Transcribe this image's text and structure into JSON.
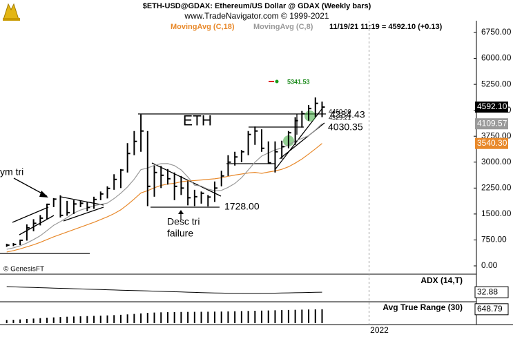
{
  "chart_data": [
    {
      "type": "ohlc",
      "title": "$ETH-USD@GDAX:  Ethereum/US Dollar @ GDAX  (Weekly bars)",
      "subtitle": "www.TradeNavigator.com © 1999-2021",
      "status": "11/19/21 11:19 = 4592.10 (+0.13)",
      "copyright": "© GenesisFT",
      "annotations": [
        "ETH",
        "1728.00",
        "4030.35",
        "4384.43",
        "4329.21",
        "4460.00",
        "5341.53",
        "Desc tri",
        "failure",
        "ym tri"
      ],
      "x": [
        1,
        2,
        3,
        4,
        5,
        6,
        7,
        8,
        9,
        10,
        11,
        12,
        13,
        14,
        15,
        16,
        17,
        18,
        19,
        20,
        21,
        22,
        23,
        24,
        25,
        26,
        27,
        28,
        29,
        30,
        31,
        32,
        33,
        34,
        35,
        36,
        37,
        38,
        39,
        40,
        41,
        42,
        43,
        44,
        45,
        46,
        47,
        48
      ],
      "xlim": [
        0,
        71
      ],
      "xticks": [
        {
          "value": 55,
          "label": "2022"
        }
      ],
      "ylim": [
        -200,
        7090
      ],
      "yticks": [
        {
          "value": 0,
          "label": "0.00"
        },
        {
          "value": 750,
          "label": "750.00"
        },
        {
          "value": 1500,
          "label": "1500.00"
        },
        {
          "value": 2250,
          "label": "2250.00"
        },
        {
          "value": 3000,
          "label": "3000.00"
        },
        {
          "value": 3750,
          "label": "3750.00"
        },
        {
          "value": 4500,
          "label": "4500.00"
        },
        {
          "value": 5250,
          "label": "5250.00"
        },
        {
          "value": 6000,
          "label": "6000.00"
        },
        {
          "value": 6750,
          "label": "6750.00"
        }
      ],
      "color": "#000000",
      "high": [
        640,
        660,
        760,
        1200,
        1350,
        1470,
        1800,
        1960,
        2040,
        1880,
        1900,
        1880,
        1850,
        2000,
        2150,
        2300,
        2650,
        2800,
        3550,
        3900,
        4380,
        3900,
        2900,
        2890,
        2800,
        2700,
        2600,
        2450,
        2200,
        2150,
        2050,
        2440,
        2750,
        3200,
        3300,
        3350,
        3900,
        4030,
        3950,
        3600,
        3600,
        3620,
        3900,
        4300,
        4480,
        4650,
        4870,
        4750
      ],
      "low": [
        550,
        570,
        600,
        730,
        1000,
        1170,
        1350,
        1700,
        1400,
        1450,
        1500,
        1700,
        1580,
        1650,
        1900,
        1950,
        2200,
        2250,
        2700,
        3200,
        3300,
        1728,
        2000,
        2250,
        2350,
        1900,
        2050,
        1750,
        1728,
        1800,
        1720,
        1850,
        2300,
        2600,
        2900,
        3000,
        3200,
        3500,
        3300,
        2950,
        2700,
        3100,
        3400,
        3500,
        4000,
        4200,
        4300,
        4300
      ],
      "close": [
        600,
        620,
        740,
        1100,
        1230,
        1380,
        1780,
        1930,
        1460,
        1540,
        1790,
        1810,
        1690,
        1920,
        2080,
        2240,
        2500,
        2770,
        3250,
        3600,
        3900,
        2300,
        2700,
        2620,
        2520,
        2300,
        2250,
        1970,
        2000,
        2100,
        1990,
        2250,
        2600,
        3000,
        3150,
        3300,
        3800,
        3900,
        3400,
        2980,
        3300,
        3450,
        3850,
        4200,
        4400,
        4550,
        4700,
        4592.1
      ],
      "last_label": "4592.10",
      "series": [
        {
          "name": "MovingAvg (C,18)",
          "color": "#e8892b",
          "last_label": "3540.30",
          "values": [
            400,
            440,
            490,
            550,
            610,
            680,
            760,
            840,
            910,
            980,
            1050,
            1120,
            1190,
            1260,
            1340,
            1420,
            1510,
            1621,
            1768,
            1934,
            2109,
            2176,
            2258,
            2327,
            2368,
            2388,
            2432,
            2456,
            2468,
            2484,
            2501,
            2519,
            2548,
            2590,
            2626,
            2656,
            2686,
            2703,
            2675,
            2713,
            2746,
            2792,
            2866,
            2972,
            3091,
            3234,
            3384,
            3540.3
          ]
        },
        {
          "name": "MovingAvg (C,8)",
          "color": "#9a9a9a",
          "values": [
            480,
            520,
            580,
            660,
            760,
            870,
            1020,
            1173,
            1280,
            1395,
            1526,
            1615,
            1673,
            1740,
            1778,
            1816,
            1946,
            2100,
            2283,
            2506,
            2783,
            2830,
            2908,
            2955,
            2958,
            2899,
            2774,
            2570,
            2333,
            2308,
            2219,
            2173,
            2183,
            2270,
            2383,
            2549,
            2774,
            2999,
            3175,
            3266,
            3354,
            3410,
            3498,
            3610,
            3685,
            3766,
            3929,
            4109.57
          ]
        }
      ]
    },
    {
      "type": "line",
      "title": "ADX (14,T)",
      "ylim": [
        20,
        56
      ],
      "color": "#000000",
      "values": [
        41,
        40.6,
        40.3,
        40,
        39.7,
        39.4,
        39.1,
        38.8,
        38.5,
        38.2,
        37.9,
        37.6,
        37.3,
        37,
        36.7,
        36.4,
        36.1,
        35.8,
        35.5,
        35.2,
        35,
        34.7,
        34.4,
        34.1,
        33.8,
        33.5,
        33.2,
        32.9,
        32.6,
        32.3,
        32,
        31.8,
        31.6,
        31.4,
        31.3,
        31.2,
        31.1,
        31.1,
        31.2,
        31.3,
        31.5,
        31.7,
        31.9,
        32.1,
        32.3,
        32.5,
        32.7,
        32.88
      ]
    },
    {
      "type": "bar",
      "title": "Avg True Range (30)",
      "ylim": [
        0,
        900
      ],
      "color": "#000000",
      "values": [
        150,
        160,
        175,
        195,
        215,
        235,
        255,
        270,
        285,
        300,
        310,
        320,
        330,
        340,
        350,
        362,
        375,
        390,
        410,
        430,
        455,
        480,
        495,
        505,
        512,
        518,
        522,
        525,
        527,
        530,
        533,
        537,
        542,
        548,
        555,
        562,
        570,
        578,
        585,
        592,
        600,
        608,
        615,
        622,
        630,
        637,
        643,
        648.79
      ]
    }
  ]
}
